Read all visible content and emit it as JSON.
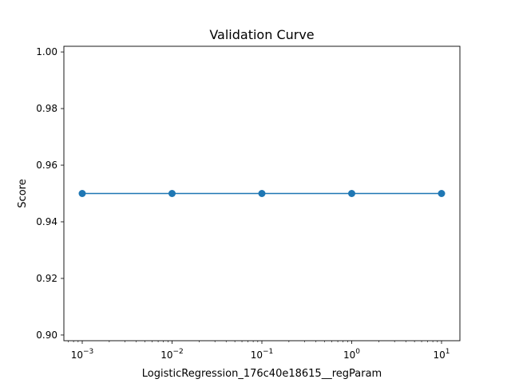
{
  "chart_data": {
    "type": "line",
    "title": "Validation Curve",
    "xlabel": "LogisticRegression_176c40e18615__regParam",
    "ylabel": "Score",
    "x_scale": "log",
    "x": [
      0.001,
      0.01,
      0.1,
      1,
      10
    ],
    "x_tick_labels": [
      {
        "base": "10",
        "exp": "−3"
      },
      {
        "base": "10",
        "exp": "−2"
      },
      {
        "base": "10",
        "exp": "−1"
      },
      {
        "base": "10",
        "exp": "0"
      },
      {
        "base": "10",
        "exp": "1"
      }
    ],
    "y_ticks": [
      "0.90",
      "0.92",
      "0.94",
      "0.96",
      "0.98",
      "1.00"
    ],
    "ylim": [
      0.898,
      1.002
    ],
    "grid": false,
    "series": [
      {
        "values": [
          0.95,
          0.95,
          0.95,
          0.95,
          0.95
        ],
        "color": "#1f77b4",
        "marker": "circle"
      }
    ]
  }
}
